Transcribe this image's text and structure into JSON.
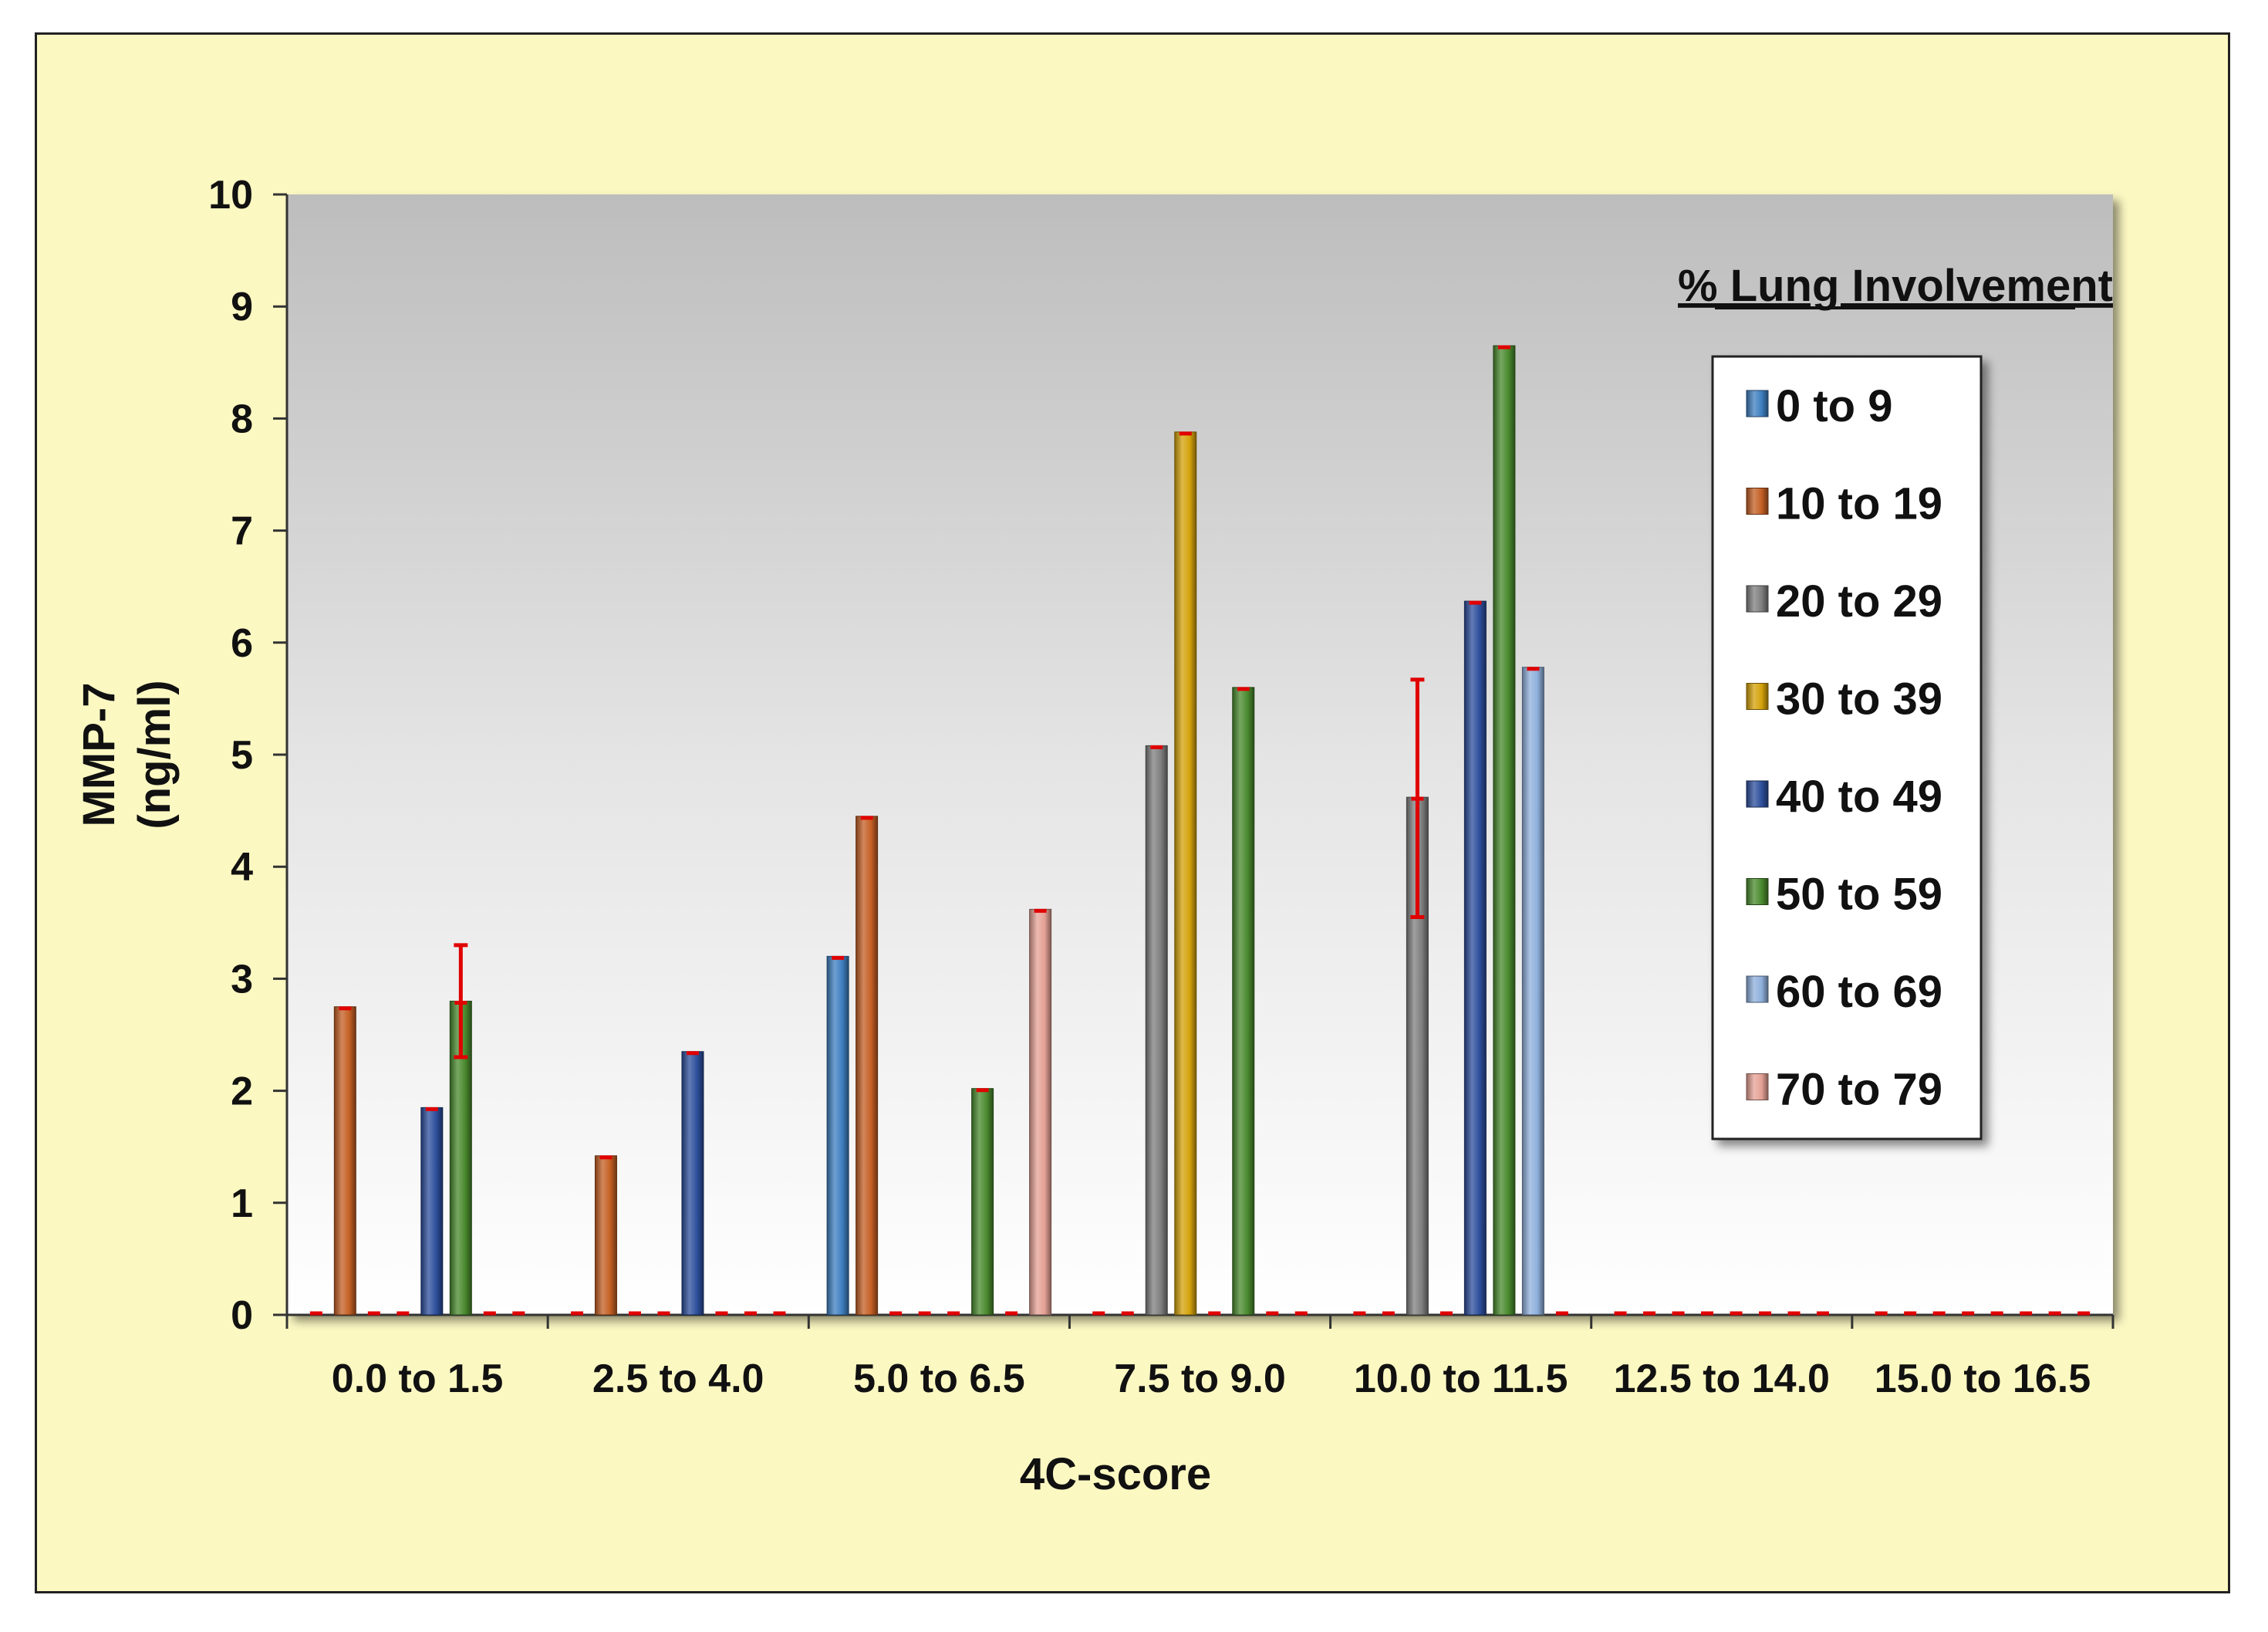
{
  "chart_data": {
    "type": "bar",
    "ylabel_line1": "MMP-7",
    "ylabel_line2": "(ng/ml)",
    "xlabel": "4C-score",
    "ylim": [
      0,
      10
    ],
    "yticks": [
      "0",
      "1",
      "2",
      "3",
      "4",
      "5",
      "6",
      "7",
      "8",
      "9",
      "10"
    ],
    "categories": [
      "0.0 to 1.5",
      "2.5 to 4.0",
      "5.0 to 6.5",
      "7.5 to 9.0",
      "10.0 to 11.5",
      "12.5 to 14.0",
      "15.0 to 16.5"
    ],
    "legend_title": "% Lung Involvement",
    "legend_position": "top-right",
    "grid": false,
    "series": [
      {
        "name": "0 to 9",
        "color": "#3f7fc0",
        "values": [
          0,
          0,
          3.2,
          0,
          0,
          0,
          0
        ]
      },
      {
        "name": "10 to 19",
        "color": "#c45f24",
        "values": [
          2.75,
          1.42,
          4.45,
          0,
          0,
          0,
          0
        ]
      },
      {
        "name": "20 to 29",
        "color": "#7f7f7f",
        "values": [
          0,
          0,
          0,
          5.08,
          4.62,
          0,
          0
        ]
      },
      {
        "name": "30 to 39",
        "color": "#d4a20a",
        "values": [
          0,
          0,
          0,
          7.88,
          0,
          0,
          0
        ]
      },
      {
        "name": "40 to 49",
        "color": "#2d4f9c",
        "values": [
          1.85,
          2.35,
          0,
          0,
          6.37,
          0,
          0
        ]
      },
      {
        "name": "50 to 59",
        "color": "#4a8a2e",
        "values": [
          2.8,
          0,
          2.02,
          5.6,
          8.65,
          0,
          0
        ]
      },
      {
        "name": "60 to 69",
        "color": "#8fb0dc",
        "values": [
          0,
          0,
          0,
          0,
          5.78,
          0,
          0
        ]
      },
      {
        "name": "70 to 79",
        "color": "#e5a195",
        "values": [
          0,
          0,
          3.62,
          0,
          0,
          0,
          0
        ]
      }
    ],
    "error_bars": [
      {
        "series": "50 to 59",
        "category": "0.0 to 1.5",
        "low": 2.3,
        "high": 3.3
      },
      {
        "series": "20 to 29",
        "category": "10.0 to 11.5",
        "low": 3.55,
        "high": 5.67
      }
    ],
    "colors": {
      "background": "#fcf8c2",
      "error_bar": "#e00000"
    }
  }
}
